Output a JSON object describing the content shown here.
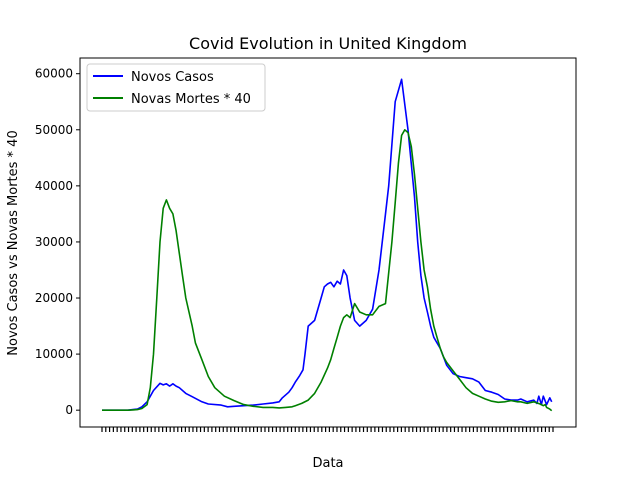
{
  "chart_data": {
    "type": "line",
    "title": "Covid Evolution in United Kingdom",
    "xlabel": "Data",
    "ylabel": "Novos Casos vs Novas Mortes * 40",
    "ylim": [
      -3000,
      62800
    ],
    "yticks": [
      0,
      10000,
      20000,
      30000,
      40000,
      50000,
      60000
    ],
    "x_range": [
      0,
      700
    ],
    "x_tick_count": 120,
    "grid": false,
    "legend_position": "top-left",
    "series": [
      {
        "name": "Novos Casos",
        "color": "#0000ff",
        "x": [
          0,
          40,
          48,
          55,
          62,
          70,
          75,
          80,
          90,
          95,
          100,
          105,
          110,
          115,
          120,
          130,
          140,
          155,
          165,
          185,
          195,
          205,
          220,
          235,
          250,
          265,
          275,
          280,
          290,
          295,
          300,
          303,
          307,
          312,
          315,
          320,
          330,
          340,
          345,
          350,
          355,
          360,
          365,
          370,
          375,
          380,
          385,
          392,
          400,
          410,
          420,
          430,
          440,
          445,
          455,
          465,
          475,
          485,
          490,
          495,
          500,
          505,
          510,
          515,
          520,
          525,
          535,
          545,
          555,
          565,
          575,
          585,
          595,
          605,
          615,
          625,
          635,
          645,
          650,
          660,
          670,
          675,
          678,
          682,
          685,
          690,
          695,
          698
        ],
        "y": [
          0,
          0,
          100,
          200,
          600,
          1500,
          2500,
          3500,
          4800,
          4500,
          4700,
          4300,
          4700,
          4300,
          4000,
          3000,
          2400,
          1500,
          1100,
          900,
          600,
          700,
          800,
          900,
          1100,
          1300,
          1500,
          2200,
          3200,
          4000,
          5000,
          5500,
          6200,
          7200,
          10000,
          15000,
          16000,
          20000,
          22000,
          22500,
          22800,
          22000,
          23000,
          22500,
          25000,
          24000,
          20000,
          16000,
          15000,
          16000,
          18000,
          25000,
          35000,
          40000,
          55000,
          59000,
          50000,
          38000,
          30000,
          24000,
          20000,
          17500,
          15000,
          13000,
          12000,
          11000,
          8000,
          6500,
          6000,
          5800,
          5600,
          5000,
          3500,
          3200,
          2800,
          2000,
          1800,
          1800,
          2000,
          1500,
          1800,
          1200,
          2500,
          1000,
          2500,
          1000,
          2200,
          1500
        ]
      },
      {
        "name": "Novas Mortes * 40",
        "color": "#008000",
        "x": [
          0,
          40,
          48,
          55,
          62,
          70,
          75,
          80,
          85,
          90,
          95,
          100,
          105,
          110,
          115,
          120,
          125,
          130,
          140,
          145,
          155,
          165,
          175,
          190,
          205,
          220,
          235,
          250,
          265,
          275,
          285,
          295,
          300,
          310,
          320,
          330,
          340,
          350,
          355,
          360,
          365,
          370,
          375,
          380,
          385,
          392,
          400,
          410,
          420,
          430,
          440,
          450,
          455,
          460,
          465,
          470,
          475,
          480,
          485,
          490,
          495,
          500,
          505,
          510,
          515,
          520,
          525,
          530,
          535,
          545,
          555,
          565,
          575,
          585,
          595,
          605,
          615,
          625,
          635,
          645,
          650,
          660,
          670,
          680,
          685,
          688,
          690,
          695,
          698
        ],
        "y": [
          0,
          0,
          50,
          100,
          300,
          1000,
          4000,
          10000,
          20000,
          30000,
          36000,
          37500,
          36000,
          35000,
          32000,
          28000,
          24000,
          20000,
          15000,
          12000,
          9000,
          6000,
          4000,
          2500,
          1700,
          1000,
          700,
          500,
          500,
          400,
          500,
          600,
          800,
          1200,
          1800,
          3000,
          5000,
          7500,
          9000,
          11000,
          13000,
          15000,
          16500,
          17000,
          16500,
          19000,
          17500,
          17000,
          17000,
          18500,
          19000,
          30000,
          37000,
          44000,
          49000,
          50000,
          49500,
          47000,
          42000,
          36000,
          30000,
          25000,
          22000,
          18000,
          15000,
          13000,
          11000,
          9500,
          8500,
          7000,
          5500,
          4000,
          3000,
          2500,
          2000,
          1600,
          1400,
          1500,
          1700,
          1500,
          1500,
          1200,
          1500,
          1100,
          800,
          1000,
          500,
          200,
          -100
        ]
      }
    ]
  }
}
